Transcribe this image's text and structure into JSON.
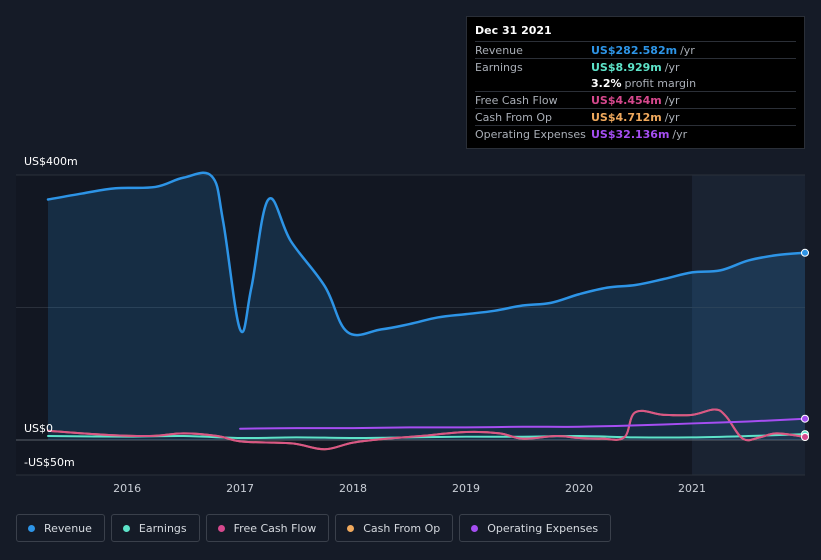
{
  "tooltip": {
    "date": "Dec 31 2021",
    "rows": [
      {
        "label": "Revenue",
        "value": "US$282.582m",
        "unit": "/yr",
        "color": "#2d94e6"
      },
      {
        "label": "Earnings",
        "value": "US$8.929m",
        "unit": "/yr",
        "color": "#5de3c9"
      },
      {
        "label": "",
        "value": "3.2%",
        "unit": "profit margin",
        "color": "#ffffff"
      },
      {
        "label": "Free Cash Flow",
        "value": "US$4.454m",
        "unit": "/yr",
        "color": "#d6488d"
      },
      {
        "label": "Cash From Op",
        "value": "US$4.712m",
        "unit": "/yr",
        "color": "#f0a95d"
      },
      {
        "label": "Operating Expenses",
        "value": "US$32.136m",
        "unit": "/yr",
        "color": "#a54ef2"
      }
    ]
  },
  "legend": [
    {
      "label": "Revenue",
      "color": "#2d94e6"
    },
    {
      "label": "Earnings",
      "color": "#5de3c9"
    },
    {
      "label": "Free Cash Flow",
      "color": "#d6488d"
    },
    {
      "label": "Cash From Op",
      "color": "#f0a95d"
    },
    {
      "label": "Operating Expenses",
      "color": "#a54ef2"
    }
  ],
  "chart_data": {
    "type": "line",
    "title": "",
    "xlabel": "",
    "ylabel": "",
    "y_tick_labels": [
      "US$400m",
      "US$0",
      "-US$50m"
    ],
    "y_ticks": [
      400,
      0,
      -50
    ],
    "x_tick_labels": [
      "2016",
      "2017",
      "2018",
      "2019",
      "2020",
      "2021"
    ],
    "x_ticks": [
      2016,
      2017,
      2018,
      2019,
      2020,
      2021
    ],
    "xlim": [
      2015.3,
      2022.0
    ],
    "ylim": [
      -55,
      400
    ],
    "forecast_shade_from": 2021.0,
    "grid": true,
    "series": [
      {
        "name": "Revenue",
        "color": "#2d94e6",
        "fill": true,
        "x": [
          2015.3,
          2015.6,
          2015.9,
          2016.25,
          2016.5,
          2016.75,
          2016.85,
          2017.0,
          2017.1,
          2017.25,
          2017.45,
          2017.75,
          2017.95,
          2018.25,
          2018.5,
          2018.75,
          2019.0,
          2019.25,
          2019.5,
          2019.75,
          2020.0,
          2020.25,
          2020.5,
          2020.75,
          2021.0,
          2021.25,
          2021.5,
          2021.75,
          2022.0
        ],
        "y": [
          363,
          372,
          380,
          382,
          396,
          398,
          330,
          167,
          230,
          363,
          300,
          232,
          163,
          167,
          175,
          185,
          190,
          195,
          203,
          207,
          220,
          230,
          234,
          243,
          253,
          256,
          271,
          279,
          282.6
        ]
      },
      {
        "name": "Earnings",
        "color": "#5de3c9",
        "fill": false,
        "x": [
          2015.3,
          2016.0,
          2016.5,
          2017.0,
          2017.5,
          2018.0,
          2018.5,
          2019.0,
          2019.5,
          2020.0,
          2020.5,
          2021.0,
          2021.5,
          2022.0
        ],
        "y": [
          6,
          5,
          6,
          3,
          4,
          3,
          4,
          5,
          5,
          6,
          4,
          4,
          6,
          8.9
        ]
      },
      {
        "name": "Free Cash Flow",
        "color": "#d6488d",
        "fill": false,
        "x": [
          2015.3,
          2015.8,
          2016.2,
          2016.5,
          2016.8,
          2017.0,
          2017.3,
          2017.5,
          2017.75,
          2018.0,
          2018.3,
          2018.6,
          2019.0,
          2019.3,
          2019.5,
          2019.8,
          2020.0,
          2020.2,
          2020.4,
          2020.5,
          2020.75,
          2021.0,
          2021.2,
          2021.3,
          2021.45,
          2021.6,
          2021.75,
          2022.0
        ],
        "y": [
          14,
          8,
          6,
          10,
          6,
          -2,
          -4,
          -6,
          -14,
          -4,
          2,
          6,
          12,
          10,
          2,
          6,
          3,
          2,
          4,
          42,
          38,
          38,
          46,
          36,
          2,
          4,
          10,
          4.5
        ]
      },
      {
        "name": "Cash From Op",
        "color": "#f0a95d",
        "fill": false,
        "x": [
          2015.3,
          2015.8,
          2016.2,
          2016.5,
          2016.8,
          2017.0,
          2017.3,
          2017.5,
          2017.75,
          2018.0,
          2018.3,
          2018.6,
          2019.0,
          2019.3,
          2019.5,
          2019.8,
          2020.0,
          2020.2,
          2020.4,
          2020.5,
          2020.75,
          2021.0,
          2021.2,
          2021.3,
          2021.45,
          2021.6,
          2021.75,
          2022.0
        ],
        "y": [
          14,
          8,
          6,
          10,
          6,
          -2,
          -4,
          -6,
          -14,
          -4,
          2,
          6,
          12,
          10,
          2,
          6,
          3,
          2,
          4,
          42,
          38,
          38,
          46,
          36,
          2,
          4,
          10,
          4.7
        ]
      },
      {
        "name": "Operating Expenses",
        "color": "#a54ef2",
        "fill": false,
        "x": [
          2017.0,
          2017.5,
          2018.0,
          2018.5,
          2019.0,
          2019.5,
          2020.0,
          2020.5,
          2021.0,
          2021.5,
          2022.0
        ],
        "y": [
          17,
          18,
          18,
          19,
          19,
          20,
          20,
          22,
          25,
          28,
          32.1
        ]
      }
    ]
  }
}
